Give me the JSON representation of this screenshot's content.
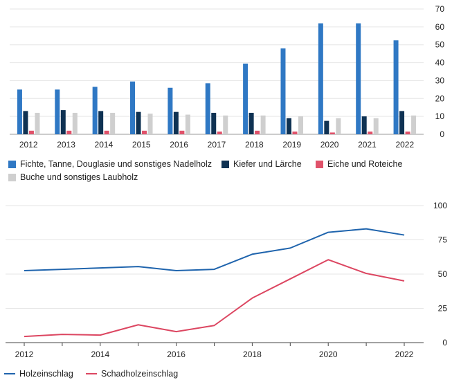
{
  "chart_data": [
    {
      "type": "bar",
      "categories": [
        "2012",
        "2013",
        "2014",
        "2015",
        "2016",
        "2017",
        "2018",
        "2019",
        "2020",
        "2021",
        "2022"
      ],
      "series": [
        {
          "name": "Fichte, Tanne, Douglasie und sonstiges Nadelholz",
          "color": "#2f78c4",
          "values": [
            25,
            25,
            26.5,
            29.5,
            26,
            28.5,
            39.5,
            48,
            62,
            62,
            52.5
          ]
        },
        {
          "name": "Kiefer und Lärche",
          "color": "#0f3253",
          "values": [
            13,
            13.5,
            13,
            12.5,
            12.5,
            12,
            12,
            9,
            7.5,
            10,
            13
          ]
        },
        {
          "name": "Eiche und Roteiche",
          "color": "#e0526a",
          "values": [
            2,
            2,
            2,
            2,
            2,
            1.5,
            2,
            1.5,
            1,
            1.5,
            1.5
          ]
        },
        {
          "name": "Buche und sonstiges Laubholz",
          "color": "#cfcfcf",
          "values": [
            12,
            12,
            12,
            11.5,
            11,
            10.5,
            10.5,
            10,
            9,
            9,
            10.5
          ]
        }
      ],
      "yticks": [
        0,
        10,
        20,
        30,
        40,
        50,
        60,
        70
      ],
      "ylim": [
        0,
        70
      ],
      "grid": true,
      "legend": "bottom"
    },
    {
      "type": "line",
      "x": [
        2012,
        2013,
        2014,
        2015,
        2016,
        2017,
        2018,
        2019,
        2020,
        2021,
        2022
      ],
      "series": [
        {
          "name": "Holzeinschlag",
          "color": "#1f64ad",
          "values": [
            52.5,
            53.5,
            54.5,
            55.5,
            52.5,
            53.5,
            64.5,
            69,
            80.5,
            83,
            78.5
          ]
        },
        {
          "name": "Schadholzeinschlag",
          "color": "#dc4661",
          "values": [
            4.5,
            6,
            5.5,
            13,
            8,
            12.5,
            32.5,
            46.5,
            60.5,
            50.5,
            45
          ]
        }
      ],
      "xticks": [
        "2012",
        "2014",
        "2016",
        "2018",
        "2020",
        "2022"
      ],
      "yticks": [
        0,
        25,
        50,
        75,
        100
      ],
      "xlim": [
        2012,
        2022
      ],
      "ylim": [
        0,
        100
      ],
      "grid": true,
      "legend": "bottom"
    }
  ]
}
